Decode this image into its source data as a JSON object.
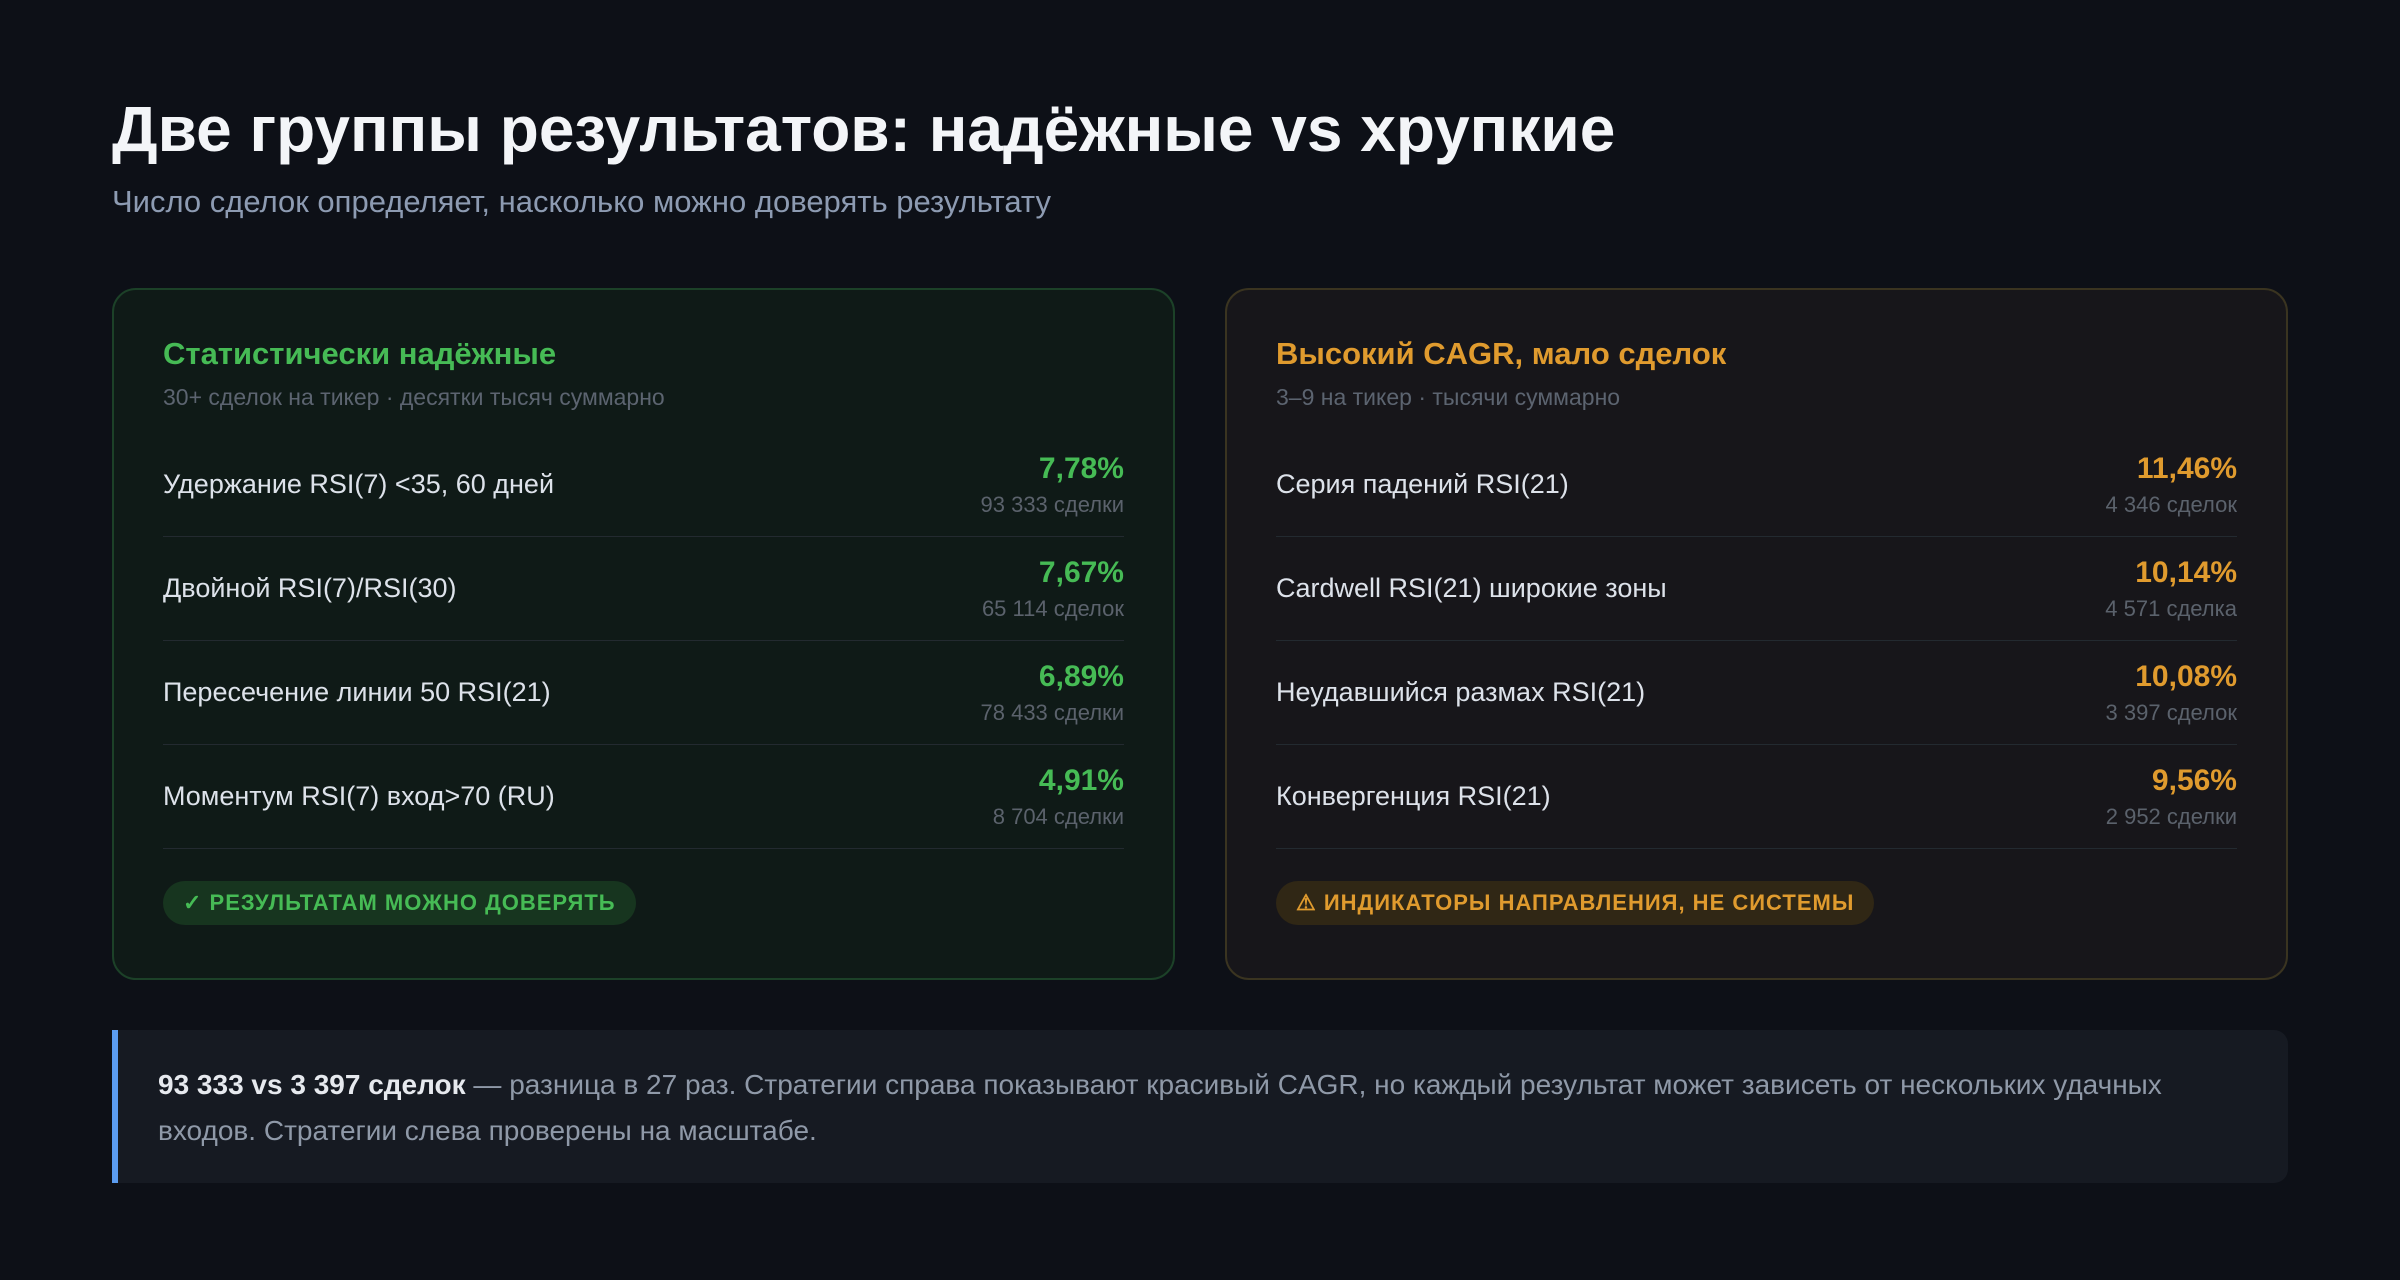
{
  "header": {
    "title": "Две группы результатов: надёжные vs хрупкие",
    "subtitle": "Число сделок определяет, насколько можно доверять результату"
  },
  "panels": [
    {
      "title": "Статистически надёжные",
      "subtitle": "30+ сделок на тикер · десятки тысяч суммарно",
      "rows": [
        {
          "label": "Удержание RSI(7) <35, 60 дней",
          "value": "7,78%",
          "count": "93 333 сделки"
        },
        {
          "label": "Двойной RSI(7)/RSI(30)",
          "value": "7,67%",
          "count": "65 114 сделок"
        },
        {
          "label": "Пересечение линии 50 RSI(21)",
          "value": "6,89%",
          "count": "78 433 сделки"
        },
        {
          "label": "Моментум RSI(7) вход>70 (RU)",
          "value": "4,91%",
          "count": "8 704 сделки"
        }
      ],
      "badge": "✓ РЕЗУЛЬТАТАМ МОЖНО ДОВЕРЯТЬ"
    },
    {
      "title": "Высокий CAGR, мало сделок",
      "subtitle": "3–9 на тикер · тысячи суммарно",
      "rows": [
        {
          "label": "Серия падений RSI(21)",
          "value": "11,46%",
          "count": "4 346 сделок"
        },
        {
          "label": "Cardwell RSI(21) широкие зоны",
          "value": "10,14%",
          "count": "4 571 сделка"
        },
        {
          "label": "Неудавшийся размах RSI(21)",
          "value": "10,08%",
          "count": "3 397 сделок"
        },
        {
          "label": "Конвергенция RSI(21)",
          "value": "9,56%",
          "count": "2 952 сделки"
        }
      ],
      "badge": "⚠ ИНДИКАТОРЫ НАПРАВЛЕНИЯ, НЕ СИСТЕМЫ"
    }
  ],
  "note": {
    "bold": "93 333 vs 3 397 сделок",
    "text": " — разница в 27 раз. Стратегии справа показывают красивый CAGR, но каждый результат может зависеть от нескольких удачных входов. Стратегии слева проверены на масштабе."
  }
}
